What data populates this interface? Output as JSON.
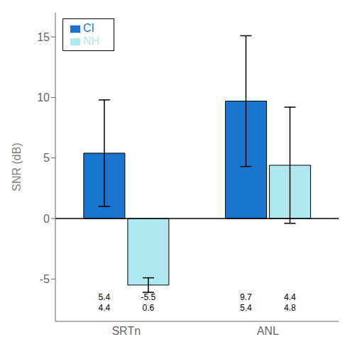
{
  "chart_data": {
    "type": "bar",
    "categories": [
      "SRTn",
      "ANL"
    ],
    "series": [
      {
        "name": "CI",
        "color": "#1874cd",
        "values": [
          5.4,
          9.7
        ],
        "errors": [
          4.4,
          5.4
        ]
      },
      {
        "name": "NH",
        "color": "#b0e8f0",
        "values": [
          -5.5,
          4.4
        ],
        "errors": [
          0.6,
          4.8
        ]
      }
    ],
    "ylabel": "SNR  (dB)",
    "ylim": [
      -8.5,
      17
    ],
    "yticks": [
      -5,
      0,
      5,
      10,
      15
    ],
    "hline": 0,
    "grid": false,
    "legend": "upper left",
    "annotations": [
      {
        "text": "5.4",
        "x": "SRTn",
        "series": "CI",
        "y": -6.2
      },
      {
        "text": "4.4",
        "x": "SRTn",
        "series": "CI",
        "y": -7.1
      },
      {
        "text": "-5.5",
        "x": "SRTn",
        "series": "NH",
        "y": -6.2
      },
      {
        "text": "0.6",
        "x": "SRTn",
        "series": "NH",
        "y": -7.1
      },
      {
        "text": "9.7",
        "x": "ANL",
        "series": "CI",
        "y": -6.2
      },
      {
        "text": "5.4",
        "x": "ANL",
        "series": "CI",
        "y": -7.1
      },
      {
        "text": "4.4",
        "x": "ANL",
        "series": "NH",
        "y": -6.2
      },
      {
        "text": "4.8",
        "x": "ANL",
        "series": "NH",
        "y": -7.1
      }
    ]
  }
}
